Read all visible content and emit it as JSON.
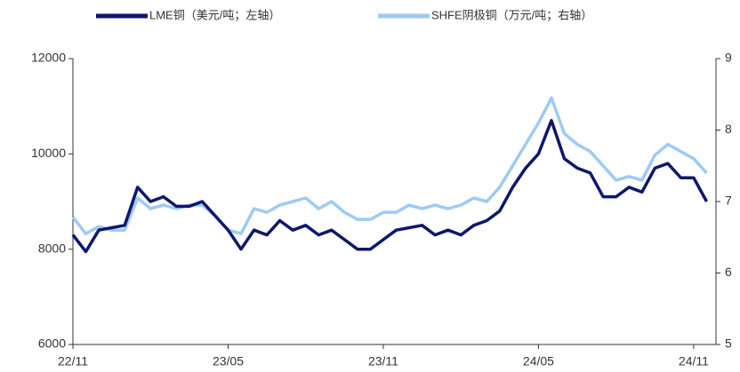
{
  "chart_data": {
    "type": "line",
    "categories": [
      "22/11",
      null,
      null,
      null,
      null,
      null,
      null,
      null,
      null,
      null,
      null,
      null,
      "23/05",
      null,
      null,
      null,
      null,
      null,
      null,
      null,
      null,
      null,
      null,
      null,
      "23/11",
      null,
      null,
      null,
      null,
      null,
      null,
      null,
      null,
      null,
      null,
      null,
      "24/05",
      null,
      null,
      null,
      null,
      null,
      null,
      null,
      null,
      null,
      null,
      null,
      "24/11",
      null
    ],
    "series": [
      {
        "name": "LME铜（美元/吨；左轴）",
        "color": "#0d176b",
        "axis": "y",
        "values": [
          8300,
          7950,
          8400,
          8450,
          8500,
          9300,
          9000,
          9100,
          8900,
          8900,
          9000,
          8700,
          8400,
          8000,
          8400,
          8300,
          8600,
          8400,
          8500,
          8300,
          8400,
          8200,
          8000,
          8000,
          8200,
          8400,
          8450,
          8500,
          8300,
          8400,
          8300,
          8500,
          8600,
          8800,
          9300,
          9700,
          10000,
          10700,
          9900,
          9700,
          9600,
          9100,
          9100,
          9300,
          9200,
          9700,
          9800,
          9500,
          9500,
          9000
        ]
      },
      {
        "name": "SHFE阴极铜（万元/吨；右轴）",
        "color": "#9dcbf4",
        "axis": "y2",
        "values": [
          6.78,
          6.55,
          6.65,
          6.6,
          6.6,
          7.05,
          6.9,
          6.95,
          6.9,
          6.95,
          6.95,
          6.8,
          6.6,
          6.55,
          6.9,
          6.85,
          6.95,
          7.0,
          7.05,
          6.9,
          7.0,
          6.85,
          6.75,
          6.75,
          6.85,
          6.85,
          6.95,
          6.9,
          6.95,
          6.9,
          6.95,
          7.05,
          7.0,
          7.2,
          7.5,
          7.8,
          8.1,
          8.45,
          7.95,
          7.8,
          7.7,
          7.5,
          7.3,
          7.35,
          7.3,
          7.65,
          7.8,
          7.7,
          7.6,
          7.4
        ]
      }
    ],
    "ylim": [
      6000,
      12000
    ],
    "yticks": [
      6000,
      8000,
      10000,
      12000
    ],
    "y2lim": [
      5,
      9
    ],
    "y2ticks": [
      5,
      6,
      7,
      8,
      9
    ],
    "grid": false,
    "legend": "top"
  }
}
